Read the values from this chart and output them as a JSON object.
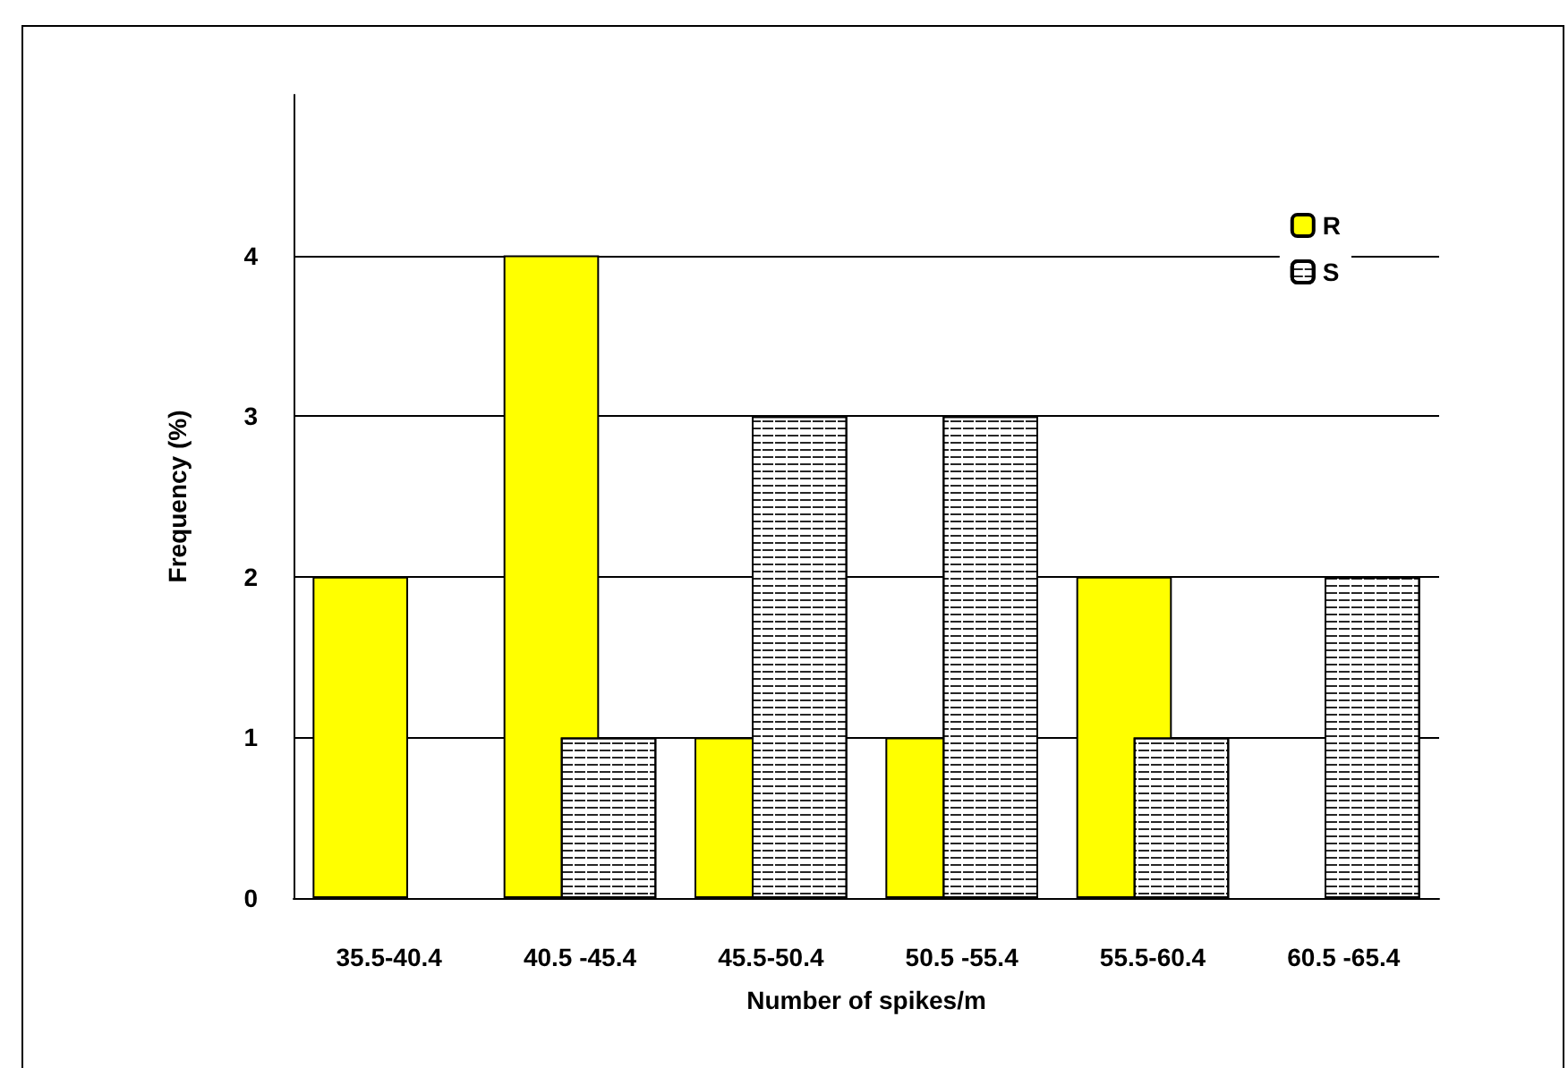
{
  "chart_data": {
    "type": "bar",
    "xlabel": "Number of spikes/m",
    "ylabel": "Frequency (%)",
    "categories": [
      "35.5-40.4",
      "40.5 -45.4",
      "45.5-50.4",
      "50.5 -55.4",
      "55.5-60.4",
      "60.5 -65.4"
    ],
    "series": [
      {
        "name": "R",
        "color": "#ffff00",
        "values": [
          2,
          4,
          1,
          1,
          2,
          0
        ]
      },
      {
        "name": "S",
        "color": "#ffffff",
        "values": [
          0,
          1,
          3,
          3,
          1,
          2
        ]
      }
    ],
    "ylim": [
      0,
      5
    ],
    "yticks": [
      0,
      1,
      2,
      3,
      4
    ],
    "grid": "y",
    "legend": "top right"
  }
}
